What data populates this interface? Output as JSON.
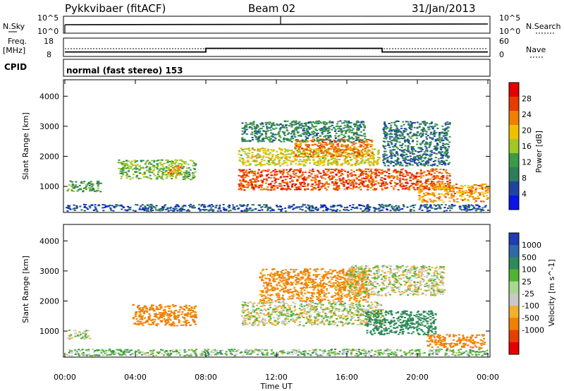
{
  "header": {
    "station": "Pykkvibaer (fitACF)",
    "beam": "Beam 02",
    "date": "31/Jan/2013"
  },
  "noise_panel": {
    "left_label": "N.Sky",
    "right_label": "N.Search",
    "left_ticks": [
      "10^5",
      "10^0"
    ],
    "right_ticks": [
      "10^5",
      "10^0"
    ]
  },
  "freq_panel": {
    "left_label_1": "Freq.",
    "left_label_2": "[MHz]",
    "left_ticks": [
      "18",
      "8"
    ],
    "right_label": "Nave",
    "right_ticks": [
      "60",
      "0"
    ],
    "freq_mhz": {
      "x_hours": [
        0,
        8,
        8,
        18,
        18,
        24
      ],
      "y": [
        10.0,
        10.0,
        12.3,
        12.3,
        10.0,
        10.0
      ]
    }
  },
  "cpid": {
    "label": "CPID",
    "value": "normal (fast stereo) 153"
  },
  "chart_data": [
    {
      "type": "heatmap",
      "name": "power",
      "ylabel": "Slant Range [km]",
      "xlabel": "Time UT",
      "xlim": [
        0,
        24
      ],
      "ylim": [
        180,
        4500
      ],
      "yticks": [
        "1000",
        "2000",
        "3000",
        "4000"
      ],
      "ytick_values": [
        1000,
        2000,
        3000,
        4000
      ],
      "colorbar": {
        "label": "Power [dB]",
        "ticks": [
          "28",
          "24",
          "20",
          "16",
          "12",
          "8",
          "4"
        ],
        "tick_values": [
          28,
          24,
          20,
          16,
          12,
          8,
          4
        ],
        "range": [
          0,
          32
        ],
        "colors": [
          "#0a14e6",
          "#1e46a0",
          "#2e7d5a",
          "#3c9a46",
          "#a0c828",
          "#f0c000",
          "#f08000",
          "#e63c00",
          "#e60000"
        ]
      },
      "regions": [
        {
          "t0": 0.1,
          "t1": 2.0,
          "r0": 850,
          "r1": 1200,
          "value": 12
        },
        {
          "t0": 3.0,
          "t1": 7.4,
          "r0": 1250,
          "r1": 1900,
          "value": 14
        },
        {
          "t0": 5.8,
          "t1": 6.6,
          "r0": 1400,
          "r1": 1700,
          "value": 22
        },
        {
          "t0": 9.8,
          "t1": 21.8,
          "r0": 900,
          "r1": 1600,
          "value": 26
        },
        {
          "t0": 9.8,
          "t1": 17.8,
          "r0": 1700,
          "r1": 2300,
          "value": 18
        },
        {
          "t0": 13.0,
          "t1": 17.4,
          "r0": 2000,
          "r1": 2600,
          "value": 24
        },
        {
          "t0": 10.0,
          "t1": 17.0,
          "r0": 2500,
          "r1": 3200,
          "value": 10
        },
        {
          "t0": 18.0,
          "t1": 21.8,
          "r0": 1700,
          "r1": 3200,
          "value": 8
        },
        {
          "t0": 20.0,
          "t1": 24.0,
          "r0": 500,
          "r1": 1100,
          "value": 22
        },
        {
          "t0": 0.0,
          "t1": 24.0,
          "r0": 200,
          "r1": 420,
          "value": 6
        }
      ]
    },
    {
      "type": "heatmap",
      "name": "velocity",
      "ylabel": "Slant Range [km]",
      "xlabel": "Time UT",
      "xlim": [
        0,
        24
      ],
      "ylim": [
        180,
        4500
      ],
      "yticks": [
        "1000",
        "2000",
        "3000",
        "4000"
      ],
      "ytick_values": [
        1000,
        2000,
        3000,
        4000
      ],
      "xticks": [
        "00:00",
        "04:00",
        "08:00",
        "12:00",
        "16:00",
        "20:00",
        "00:00"
      ],
      "xtick_values": [
        0,
        4,
        8,
        12,
        16,
        20,
        24
      ],
      "colorbar": {
        "label": "Velocity [m s^-1]",
        "ticks": [
          "1000",
          "500",
          "100",
          "25",
          "-25",
          "-100",
          "-500",
          "-1000"
        ],
        "colors": [
          "#1e3cb4",
          "#2e6aa8",
          "#2e8a5a",
          "#50b432",
          "#a8d890",
          "#c8c8c8",
          "#f0b030",
          "#f08000",
          "#e64000",
          "#e60000"
        ]
      },
      "regions": [
        {
          "t0": 0.1,
          "t1": 1.4,
          "r0": 750,
          "r1": 1050,
          "value": 0,
          "label": "-25..25"
        },
        {
          "t0": 3.8,
          "t1": 7.4,
          "r0": 1200,
          "r1": 1900,
          "value": -300,
          "label": "-500..-100"
        },
        {
          "t0": 10.0,
          "t1": 18.0,
          "r0": 1200,
          "r1": 2000,
          "value": 0,
          "label": "-25..25"
        },
        {
          "t0": 11.0,
          "t1": 17.2,
          "r0": 2000,
          "r1": 3100,
          "value": -150,
          "label": "-500..-100"
        },
        {
          "t0": 16.0,
          "t1": 21.5,
          "r0": 2200,
          "r1": 3200,
          "value": 0,
          "label": "-25..25"
        },
        {
          "t0": 17.0,
          "t1": 21.0,
          "r0": 900,
          "r1": 1700,
          "value": 200,
          "label": "100..500"
        },
        {
          "t0": 20.5,
          "t1": 23.8,
          "r0": 450,
          "r1": 900,
          "value": -300,
          "label": "-500..-100"
        },
        {
          "t0": 0.0,
          "t1": 24.0,
          "r0": 200,
          "r1": 420,
          "value": 50,
          "label": "25..100"
        }
      ]
    }
  ]
}
